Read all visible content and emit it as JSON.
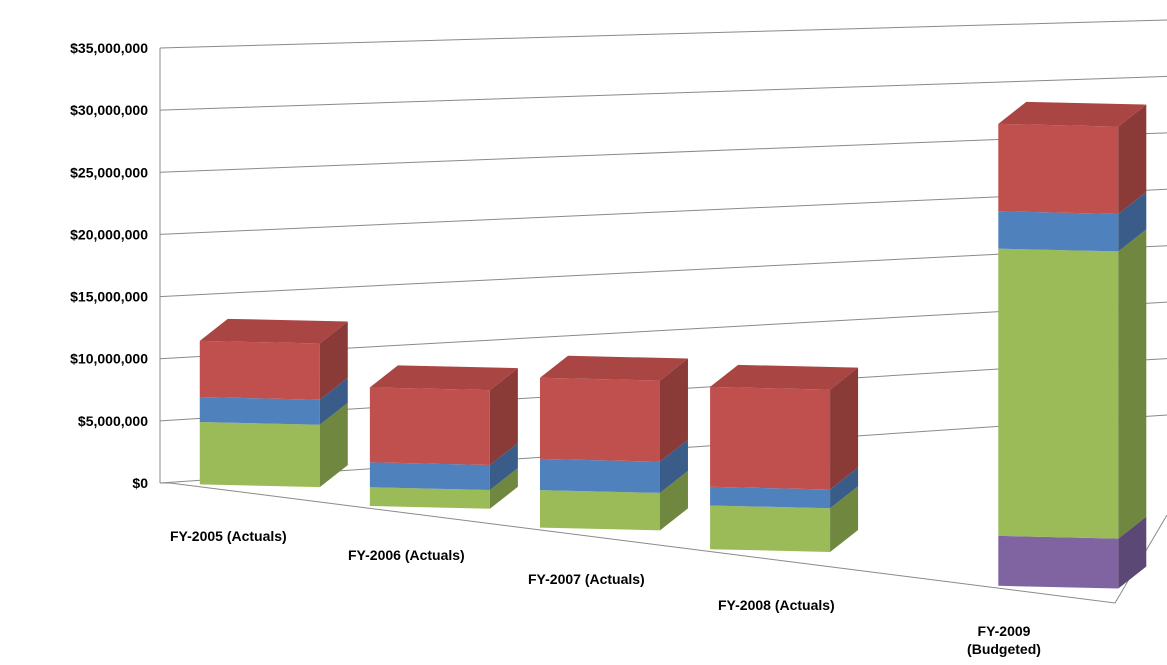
{
  "chart_data": {
    "type": "bar",
    "stacked": true,
    "three_d": true,
    "categories": [
      [
        "FY-2005 (Actuals)"
      ],
      [
        "FY-2006 (Actuals)"
      ],
      [
        "FY-2007 (Actuals)"
      ],
      [
        "FY-2008 (Actuals)"
      ],
      [
        "FY-2009",
        "(Budgeted)"
      ]
    ],
    "series": [
      {
        "color": "#8064a2",
        "values": [
          0,
          0,
          0,
          0,
          4000000
        ]
      },
      {
        "color": "#9bbb59",
        "values": [
          5000000,
          1500000,
          3000000,
          3500000,
          23000000
        ]
      },
      {
        "color": "#4f81bd",
        "values": [
          2000000,
          2000000,
          2500000,
          1500000,
          3000000
        ]
      },
      {
        "color": "#c0504d",
        "values": [
          4500000,
          6000000,
          6500000,
          8000000,
          7000000
        ]
      }
    ],
    "yticks": [
      "$0",
      "$5,000,000",
      "$10,000,000",
      "$15,000,000",
      "$20,000,000",
      "$25,000,000",
      "$30,000,000",
      "$35,000,000"
    ],
    "ylim": [
      0,
      35000000
    ],
    "grid": true,
    "legend": "none"
  }
}
